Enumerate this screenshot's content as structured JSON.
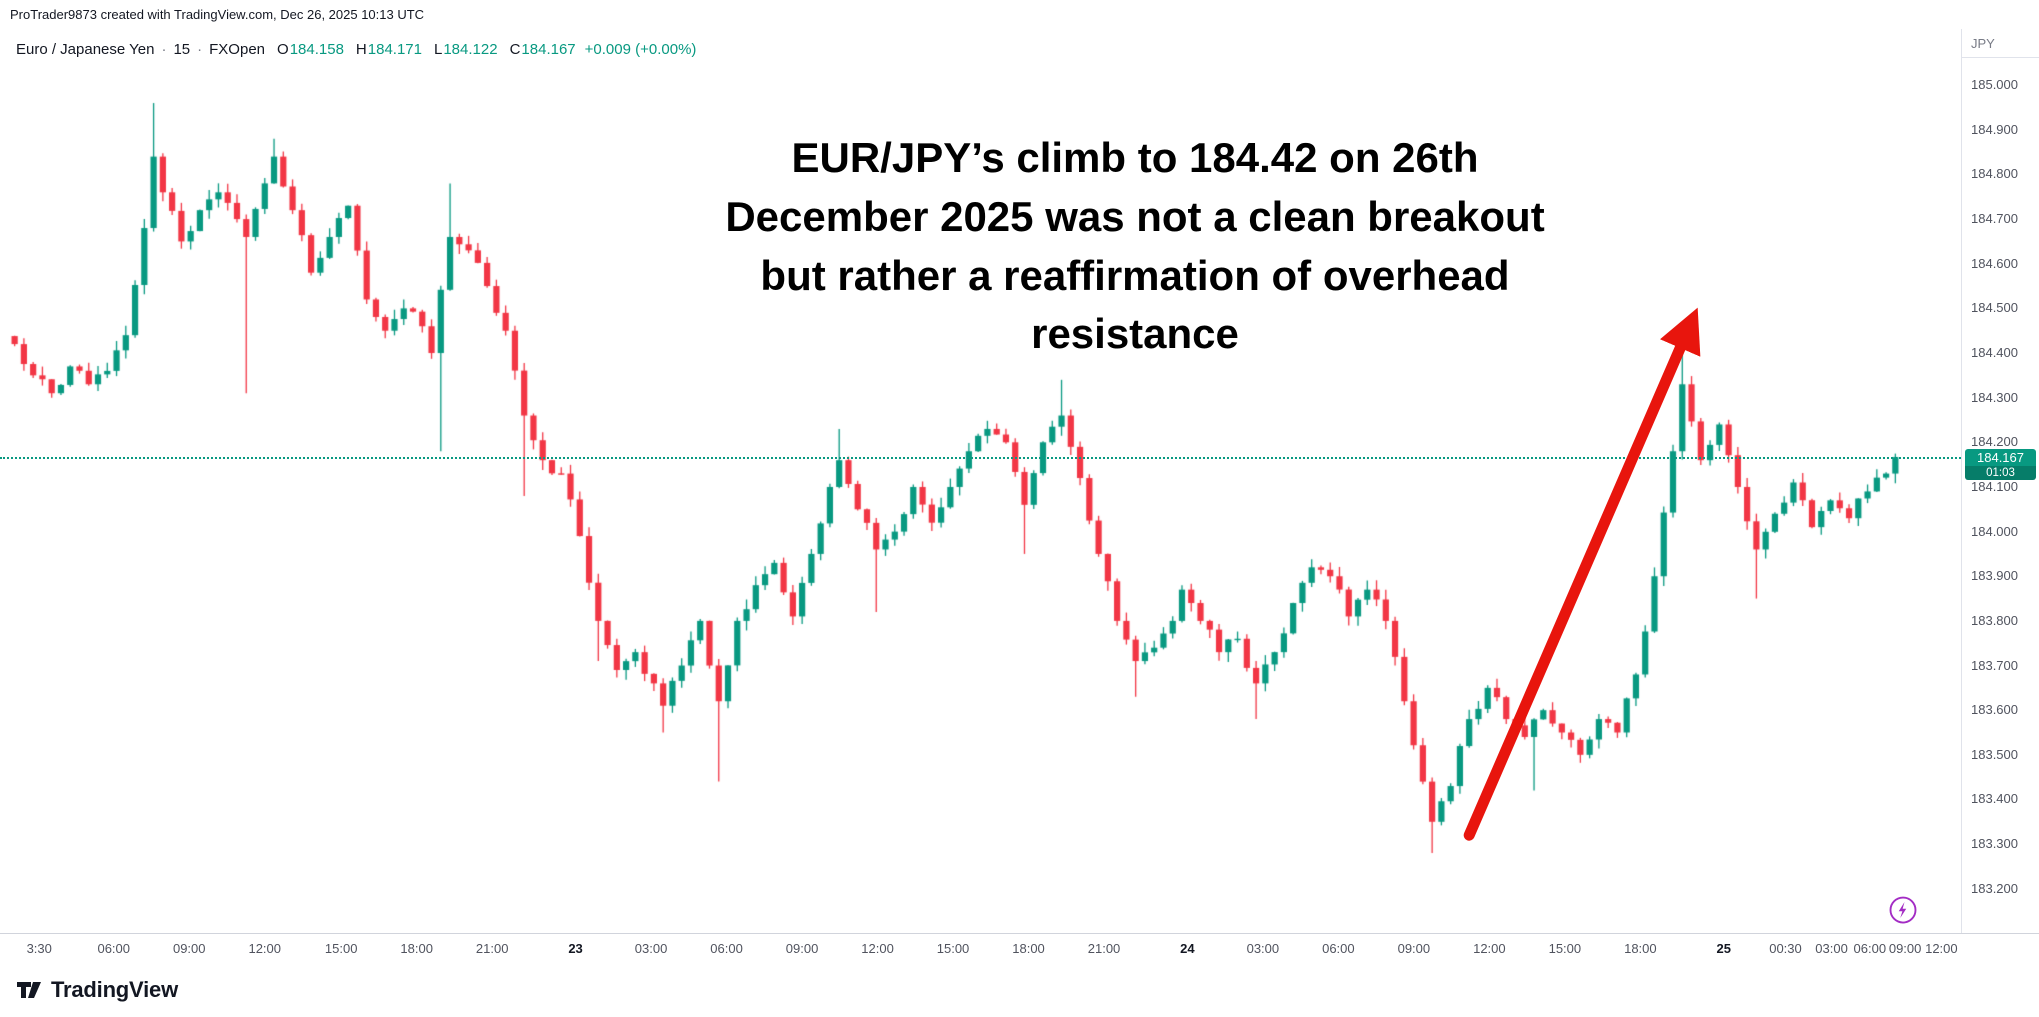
{
  "attribution": "ProTrader9873 created with TradingView.com, Dec 26, 2025 10:13 UTC",
  "header": {
    "title": "Euro / Japanese Yen",
    "separator": "·",
    "interval": "15",
    "exchange": "FXOpen",
    "ohlc": {
      "open_label": "O",
      "open": "184.158",
      "high_label": "H",
      "high": "184.171",
      "low_label": "L",
      "low": "184.122",
      "close_label": "C",
      "close": "184.167",
      "change": "+0.009 (+0.00%)"
    }
  },
  "price_scale": {
    "currency": "JPY",
    "last_price_label": "184.167",
    "countdown": "01:03"
  },
  "annotation": {
    "lines": [
      "EUR/JPY’s climb to 184.42 on 26th",
      "December 2025 was not a clean breakout",
      "but rather a reaffirmation of overhead",
      "resistance"
    ]
  },
  "footer": {
    "brand": "TradingView"
  },
  "colors": {
    "up": "#089981",
    "down": "#f23645",
    "arrow": "#e8150d",
    "lightning": "#a32cc4",
    "axis_text": "#50535e",
    "border": "#e0e3eb",
    "annotation_text": "#000000",
    "badge": "#089981"
  },
  "chart_data": {
    "type": "candlestick",
    "title": "Euro / Japanese Yen · 15 · FXOpen",
    "symbol": "EUR/JPY",
    "interval_minutes": 15,
    "last_price": 184.167,
    "countdown": "01:03",
    "session_high": 184.96,
    "session_low": 183.28,
    "num_candles": 204,
    "price_axis": {
      "min": 183.13,
      "max": 185.09,
      "tick_step": 0.1,
      "tick_labels": [
        "185.000",
        "184.900",
        "184.800",
        "184.700",
        "184.600",
        "184.500",
        "184.400",
        "184.300",
        "184.200",
        "184.100",
        "184.000",
        "183.900",
        "183.800",
        "183.700",
        "183.600",
        "183.500",
        "183.400",
        "183.300",
        "183.200"
      ]
    },
    "time_axis_ticks": [
      {
        "label": "3:30",
        "pos": 0.02,
        "day_marker": false
      },
      {
        "label": "06:00",
        "pos": 0.058,
        "day_marker": false
      },
      {
        "label": "09:00",
        "pos": 0.0965,
        "day_marker": false
      },
      {
        "label": "12:00",
        "pos": 0.135,
        "day_marker": false
      },
      {
        "label": "15:00",
        "pos": 0.174,
        "day_marker": false
      },
      {
        "label": "18:00",
        "pos": 0.2125,
        "day_marker": false
      },
      {
        "label": "21:00",
        "pos": 0.251,
        "day_marker": false
      },
      {
        "label": "23",
        "pos": 0.2935,
        "day_marker": true
      },
      {
        "label": "03:00",
        "pos": 0.332,
        "day_marker": false
      },
      {
        "label": "06:00",
        "pos": 0.3705,
        "day_marker": false
      },
      {
        "label": "09:00",
        "pos": 0.409,
        "day_marker": false
      },
      {
        "label": "12:00",
        "pos": 0.4475,
        "day_marker": false
      },
      {
        "label": "15:00",
        "pos": 0.486,
        "day_marker": false
      },
      {
        "label": "18:00",
        "pos": 0.5245,
        "day_marker": false
      },
      {
        "label": "21:00",
        "pos": 0.563,
        "day_marker": false
      },
      {
        "label": "24",
        "pos": 0.6055,
        "day_marker": true
      },
      {
        "label": "03:00",
        "pos": 0.644,
        "day_marker": false
      },
      {
        "label": "06:00",
        "pos": 0.6825,
        "day_marker": false
      },
      {
        "label": "09:00",
        "pos": 0.721,
        "day_marker": false
      },
      {
        "label": "12:00",
        "pos": 0.7595,
        "day_marker": false
      },
      {
        "label": "15:00",
        "pos": 0.798,
        "day_marker": false
      },
      {
        "label": "18:00",
        "pos": 0.8365,
        "day_marker": false
      },
      {
        "label": "25",
        "pos": 0.879,
        "day_marker": true
      },
      {
        "label": "00:30",
        "pos": 0.9105,
        "day_marker": false
      },
      {
        "label": "03:00",
        "pos": 0.934,
        "day_marker": false
      },
      {
        "label": "06:00",
        "pos": 0.9535,
        "day_marker": false
      },
      {
        "label": "09:00",
        "pos": 0.9715,
        "day_marker": false
      },
      {
        "label": "12:00",
        "pos": 0.99,
        "day_marker": false
      }
    ],
    "anchors": [
      [
        0,
        184.42
      ],
      [
        2,
        184.35
      ],
      [
        4,
        184.31
      ],
      [
        6,
        184.37
      ],
      [
        8,
        184.33
      ],
      [
        10,
        184.36
      ],
      [
        12,
        184.44
      ],
      [
        14,
        184.68
      ],
      [
        15,
        184.84
      ],
      [
        16,
        184.76
      ],
      [
        18,
        184.65
      ],
      [
        20,
        184.72
      ],
      [
        22,
        184.76
      ],
      [
        24,
        184.7
      ],
      [
        25,
        184.66
      ],
      [
        27,
        184.78
      ],
      [
        28,
        184.84
      ],
      [
        30,
        184.72
      ],
      [
        32,
        184.58
      ],
      [
        34,
        184.66
      ],
      [
        36,
        184.73
      ],
      [
        38,
        184.52
      ],
      [
        40,
        184.45
      ],
      [
        42,
        184.5
      ],
      [
        44,
        184.46
      ],
      [
        45,
        184.4
      ],
      [
        47,
        184.66
      ],
      [
        49,
        184.63
      ],
      [
        51,
        184.55
      ],
      [
        53,
        184.45
      ],
      [
        55,
        184.26
      ],
      [
        57,
        184.16
      ],
      [
        59,
        184.13
      ],
      [
        61,
        183.99
      ],
      [
        63,
        183.8
      ],
      [
        65,
        183.69
      ],
      [
        67,
        183.73
      ],
      [
        69,
        183.66
      ],
      [
        70,
        183.61
      ],
      [
        72,
        183.7
      ],
      [
        74,
        183.8
      ],
      [
        75,
        183.7
      ],
      [
        76,
        183.62
      ],
      [
        78,
        183.8
      ],
      [
        80,
        183.88
      ],
      [
        82,
        183.93
      ],
      [
        84,
        183.81
      ],
      [
        86,
        183.95
      ],
      [
        88,
        184.1
      ],
      [
        89,
        184.16
      ],
      [
        91,
        184.05
      ],
      [
        93,
        183.96
      ],
      [
        95,
        184.0
      ],
      [
        97,
        184.1
      ],
      [
        99,
        184.02
      ],
      [
        101,
        184.1
      ],
      [
        103,
        184.18
      ],
      [
        105,
        184.23
      ],
      [
        107,
        184.2
      ],
      [
        109,
        184.06
      ],
      [
        111,
        184.2
      ],
      [
        113,
        184.26
      ],
      [
        115,
        184.12
      ],
      [
        117,
        183.95
      ],
      [
        119,
        183.8
      ],
      [
        121,
        183.71
      ],
      [
        123,
        183.74
      ],
      [
        125,
        183.8
      ],
      [
        126,
        183.87
      ],
      [
        128,
        183.8
      ],
      [
        130,
        183.73
      ],
      [
        132,
        183.76
      ],
      [
        134,
        183.66
      ],
      [
        136,
        183.73
      ],
      [
        138,
        183.84
      ],
      [
        140,
        183.92
      ],
      [
        142,
        183.9
      ],
      [
        144,
        183.81
      ],
      [
        146,
        183.87
      ],
      [
        148,
        183.8
      ],
      [
        150,
        183.62
      ],
      [
        152,
        183.44
      ],
      [
        153,
        183.35
      ],
      [
        155,
        183.43
      ],
      [
        157,
        183.58
      ],
      [
        159,
        183.65
      ],
      [
        161,
        183.58
      ],
      [
        163,
        183.54
      ],
      [
        165,
        183.6
      ],
      [
        167,
        183.55
      ],
      [
        169,
        183.5
      ],
      [
        171,
        183.58
      ],
      [
        173,
        183.55
      ],
      [
        175,
        183.68
      ],
      [
        177,
        183.9
      ],
      [
        179,
        184.18
      ],
      [
        180,
        184.33
      ],
      [
        182,
        184.16
      ],
      [
        184,
        184.24
      ],
      [
        186,
        184.1
      ],
      [
        188,
        183.96
      ],
      [
        190,
        184.04
      ],
      [
        192,
        184.11
      ],
      [
        194,
        184.01
      ],
      [
        196,
        184.07
      ],
      [
        198,
        184.03
      ],
      [
        200,
        184.09
      ],
      [
        202,
        184.13
      ],
      [
        203,
        184.167
      ]
    ],
    "wicks": [
      {
        "i": 15,
        "high": 184.96
      },
      {
        "i": 25,
        "low": 184.31
      },
      {
        "i": 28,
        "high": 184.88
      },
      {
        "i": 46,
        "low": 184.18
      },
      {
        "i": 47,
        "high": 184.78
      },
      {
        "i": 55,
        "low": 184.08
      },
      {
        "i": 63,
        "low": 183.71
      },
      {
        "i": 70,
        "low": 183.55
      },
      {
        "i": 76,
        "low": 183.44
      },
      {
        "i": 89,
        "high": 184.23
      },
      {
        "i": 93,
        "low": 183.82
      },
      {
        "i": 109,
        "low": 183.95
      },
      {
        "i": 113,
        "high": 184.34
      },
      {
        "i": 121,
        "low": 183.63
      },
      {
        "i": 134,
        "low": 183.58
      },
      {
        "i": 153,
        "low": 183.28
      },
      {
        "i": 164,
        "low": 183.42
      },
      {
        "i": 180,
        "high": 184.42
      },
      {
        "i": 188,
        "low": 183.85
      }
    ],
    "arrow": {
      "from_index": 157,
      "from_price": 183.32,
      "to_index": 181,
      "to_price": 184.47
    }
  }
}
